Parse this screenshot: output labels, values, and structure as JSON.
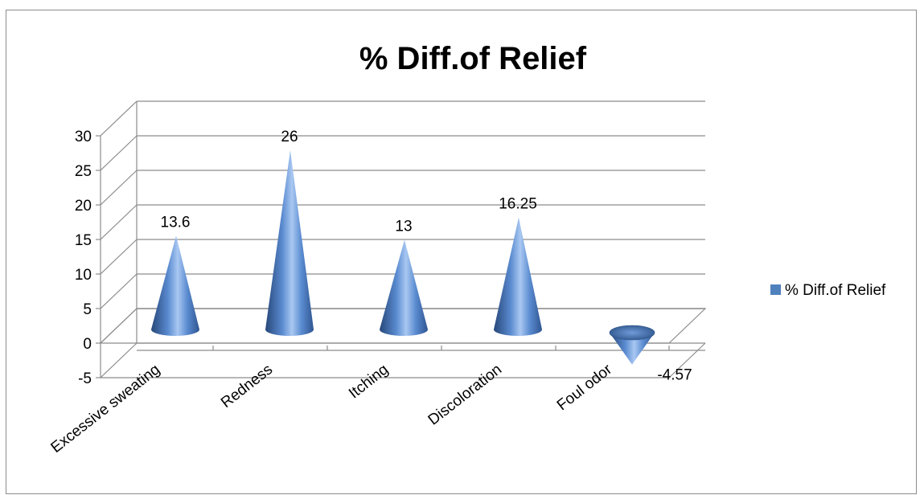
{
  "chart_data": {
    "type": "bar",
    "bar_shape": "cone-3d",
    "title": "% Diff.of Relief",
    "categories": [
      "Excessive sweating",
      "Redness",
      "Itching",
      "Discoloration",
      "Foul odor"
    ],
    "series": [
      {
        "name": "% Diff.of Relief",
        "values": [
          13.6,
          26,
          13,
          16.25,
          -4.57
        ],
        "color": "#4f81bd"
      }
    ],
    "data_labels": [
      "13.6",
      "26",
      "13",
      "16.25",
      "-4.57"
    ],
    "xlabel": "",
    "ylabel": "",
    "ylim": [
      -5,
      30
    ],
    "yticks": [
      "-5",
      "0",
      "5",
      "10",
      "15",
      "20",
      "25",
      "30"
    ],
    "grid": true,
    "legend_position": "right"
  }
}
